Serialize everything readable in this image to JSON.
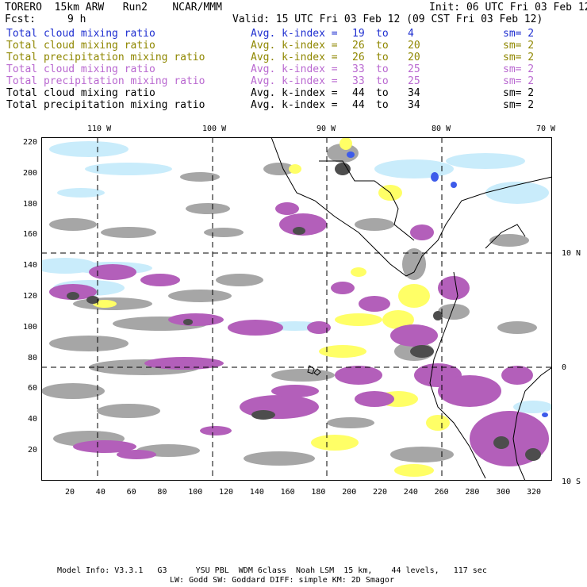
{
  "header": {
    "model_line": "TORERO  15km ARW   Run2    NCAR/MMM",
    "init": "Init: 06 UTC Fri 03 Feb 12",
    "fcst_label": "Fcst:",
    "fcst_value": "9 h",
    "valid": "Valid: 15 UTC Fri 03 Feb 12 (09 CST Fri 03 Feb 12)"
  },
  "legend": [
    {
      "field": "Total cloud mixing ratio",
      "index_label": "Avg. k-index =",
      "from": "19",
      "to_word": "to",
      "to": "4",
      "smooth": "sm= 2",
      "color": "#1f2fd0"
    },
    {
      "field": "Total cloud mixing ratio",
      "index_label": "Avg. k-index =",
      "from": "26",
      "to_word": "to",
      "to": "20",
      "smooth": "sm= 2",
      "color": "#8f8700"
    },
    {
      "field": "Total precipitation mixing ratio",
      "index_label": "Avg. k-index =",
      "from": "26",
      "to_word": "to",
      "to": "20",
      "smooth": "sm= 2",
      "color": "#8f8700"
    },
    {
      "field": "Total cloud mixing ratio",
      "index_label": "Avg. k-index =",
      "from": "33",
      "to_word": "to",
      "to": "25",
      "smooth": "sm= 2",
      "color": "#b968d0"
    },
    {
      "field": "Total precipitation mixing ratio",
      "index_label": "Avg. k-index =",
      "from": "33",
      "to_word": "to",
      "to": "25",
      "smooth": "sm= 2",
      "color": "#b968d0"
    },
    {
      "field": "Total cloud mixing ratio",
      "index_label": "Avg. k-index =",
      "from": "44",
      "to_word": "to",
      "to": "34",
      "smooth": "sm= 2",
      "color": "#000000"
    },
    {
      "field": "Total precipitation mixing ratio",
      "index_label": "Avg. k-index =",
      "from": "44",
      "to_word": "to",
      "to": "34",
      "smooth": "sm= 2",
      "color": "#000000"
    }
  ],
  "map": {
    "lon_labels": [
      "110 W",
      "100 W",
      "90 W",
      "80 W",
      "70 W"
    ],
    "lat_labels": [
      "10 N",
      "0",
      "10 S"
    ],
    "x_ticks": [
      "20",
      "40",
      "60",
      "80",
      "100",
      "120",
      "140",
      "160",
      "180",
      "200",
      "220",
      "240",
      "260",
      "280",
      "300",
      "320"
    ],
    "y_ticks": [
      "220",
      "200",
      "180",
      "160",
      "140",
      "120",
      "100",
      "80",
      "60",
      "40",
      "20"
    ],
    "colors": {
      "cloud_low": "#c9ecfb",
      "cloud_mid": "#ffff66",
      "precip_mid": "#b35fba",
      "cloud_high_gray": "#a6a6a6",
      "precip_high": "#4d4d4d",
      "deep_blue": "#3d5bea",
      "coast": "#000000"
    }
  },
  "footer": {
    "line1": "Model Info: V3.3.1   G3      YSU PBL  WDM 6class  Noah LSM  15 km,    44 levels,   117 sec",
    "line2": "LW: Godd SW: Goddard DIFF: simple KM: 2D Smagor"
  }
}
